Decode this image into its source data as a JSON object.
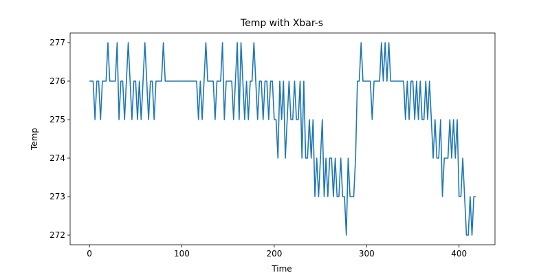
{
  "chart_data": {
    "type": "line",
    "title": "Temp with Xbar-s",
    "x_label": "Time",
    "y_label": "Temp",
    "color": "#1f77b4",
    "x": [
      0,
      2,
      4,
      6,
      8,
      10,
      12,
      14,
      16,
      18,
      20,
      22,
      24,
      26,
      28,
      30,
      32,
      34,
      36,
      38,
      40,
      42,
      44,
      46,
      48,
      50,
      52,
      54,
      56,
      58,
      60,
      62,
      64,
      66,
      68,
      70,
      72,
      74,
      76,
      78,
      80,
      82,
      84,
      86,
      88,
      90,
      92,
      94,
      96,
      98,
      100,
      102,
      104,
      106,
      108,
      110,
      112,
      114,
      116,
      118,
      120,
      122,
      124,
      126,
      128,
      130,
      132,
      134,
      136,
      138,
      140,
      142,
      144,
      146,
      148,
      150,
      152,
      154,
      156,
      158,
      160,
      162,
      164,
      166,
      168,
      170,
      172,
      174,
      176,
      178,
      180,
      182,
      184,
      186,
      188,
      190,
      192,
      194,
      196,
      198,
      200,
      202,
      204,
      206,
      208,
      210,
      212,
      214,
      216,
      218,
      220,
      222,
      224,
      226,
      228,
      230,
      232,
      234,
      236,
      238,
      240,
      242,
      244,
      246,
      248,
      250,
      252,
      254,
      256,
      258,
      260,
      262,
      264,
      266,
      268,
      270,
      272,
      274,
      276,
      278,
      280,
      282,
      284,
      286,
      288,
      290,
      292,
      294,
      296,
      298,
      300,
      302,
      304,
      306,
      308,
      310,
      312,
      314,
      316,
      318,
      320,
      322,
      324,
      326,
      328,
      330,
      332,
      334,
      336,
      338,
      340,
      342,
      344,
      346,
      348,
      350,
      352,
      354,
      356,
      358,
      360,
      362,
      364,
      366,
      368,
      370,
      372,
      374,
      376,
      378,
      380,
      382,
      384,
      386,
      388,
      390,
      392,
      394,
      396,
      398,
      400,
      402,
      404,
      406,
      408,
      410,
      412,
      414,
      416,
      418
    ],
    "values": [
      276,
      276,
      276,
      275,
      276,
      276,
      275,
      276,
      276,
      276,
      277,
      276,
      276,
      276,
      276,
      277,
      275,
      276,
      276,
      275,
      276,
      277,
      276,
      275,
      276,
      276,
      275,
      276,
      275,
      276,
      277,
      276,
      275,
      276,
      276,
      275,
      276,
      276,
      276,
      276,
      277,
      276,
      276,
      276,
      276,
      276,
      276,
      276,
      276,
      276,
      276,
      276,
      276,
      276,
      276,
      276,
      276,
      276,
      276,
      275,
      276,
      275,
      276,
      277,
      276,
      276,
      276,
      276,
      275,
      276,
      276,
      276,
      277,
      275,
      276,
      276,
      276,
      276,
      275,
      276,
      277,
      275,
      277,
      276,
      275,
      276,
      275,
      276,
      276,
      277,
      276,
      275,
      276,
      276,
      275,
      276,
      276,
      275,
      276,
      276,
      275,
      275,
      274,
      276,
      275,
      276,
      274,
      275,
      276,
      275,
      275,
      276,
      275,
      275,
      276,
      274,
      276,
      274,
      274,
      275,
      274,
      275,
      273,
      274,
      273,
      274,
      275,
      273,
      274,
      273,
      274,
      274,
      273,
      274,
      273,
      273,
      274,
      273,
      273,
      272,
      274,
      273,
      273,
      273,
      274,
      276,
      276,
      277,
      276,
      276,
      276,
      276,
      276,
      275,
      276,
      276,
      276,
      276,
      277,
      276,
      277,
      276,
      277,
      276,
      276,
      276,
      276,
      276,
      276,
      276,
      276,
      275,
      276,
      275,
      276,
      276,
      275,
      276,
      275,
      276,
      275,
      275,
      276,
      275,
      276,
      275,
      274,
      275,
      274,
      274,
      275,
      273,
      274,
      274,
      274,
      275,
      274,
      275,
      274,
      275,
      273,
      273,
      274,
      273,
      272,
      272,
      273,
      272,
      273,
      273
    ],
    "xlim": [
      -20.9,
      438.9
    ],
    "xticks": [
      0,
      100,
      200,
      300,
      400
    ],
    "ylim": [
      271.75,
      277.25
    ],
    "yticks": [
      272,
      273,
      274,
      275,
      276,
      277
    ]
  }
}
